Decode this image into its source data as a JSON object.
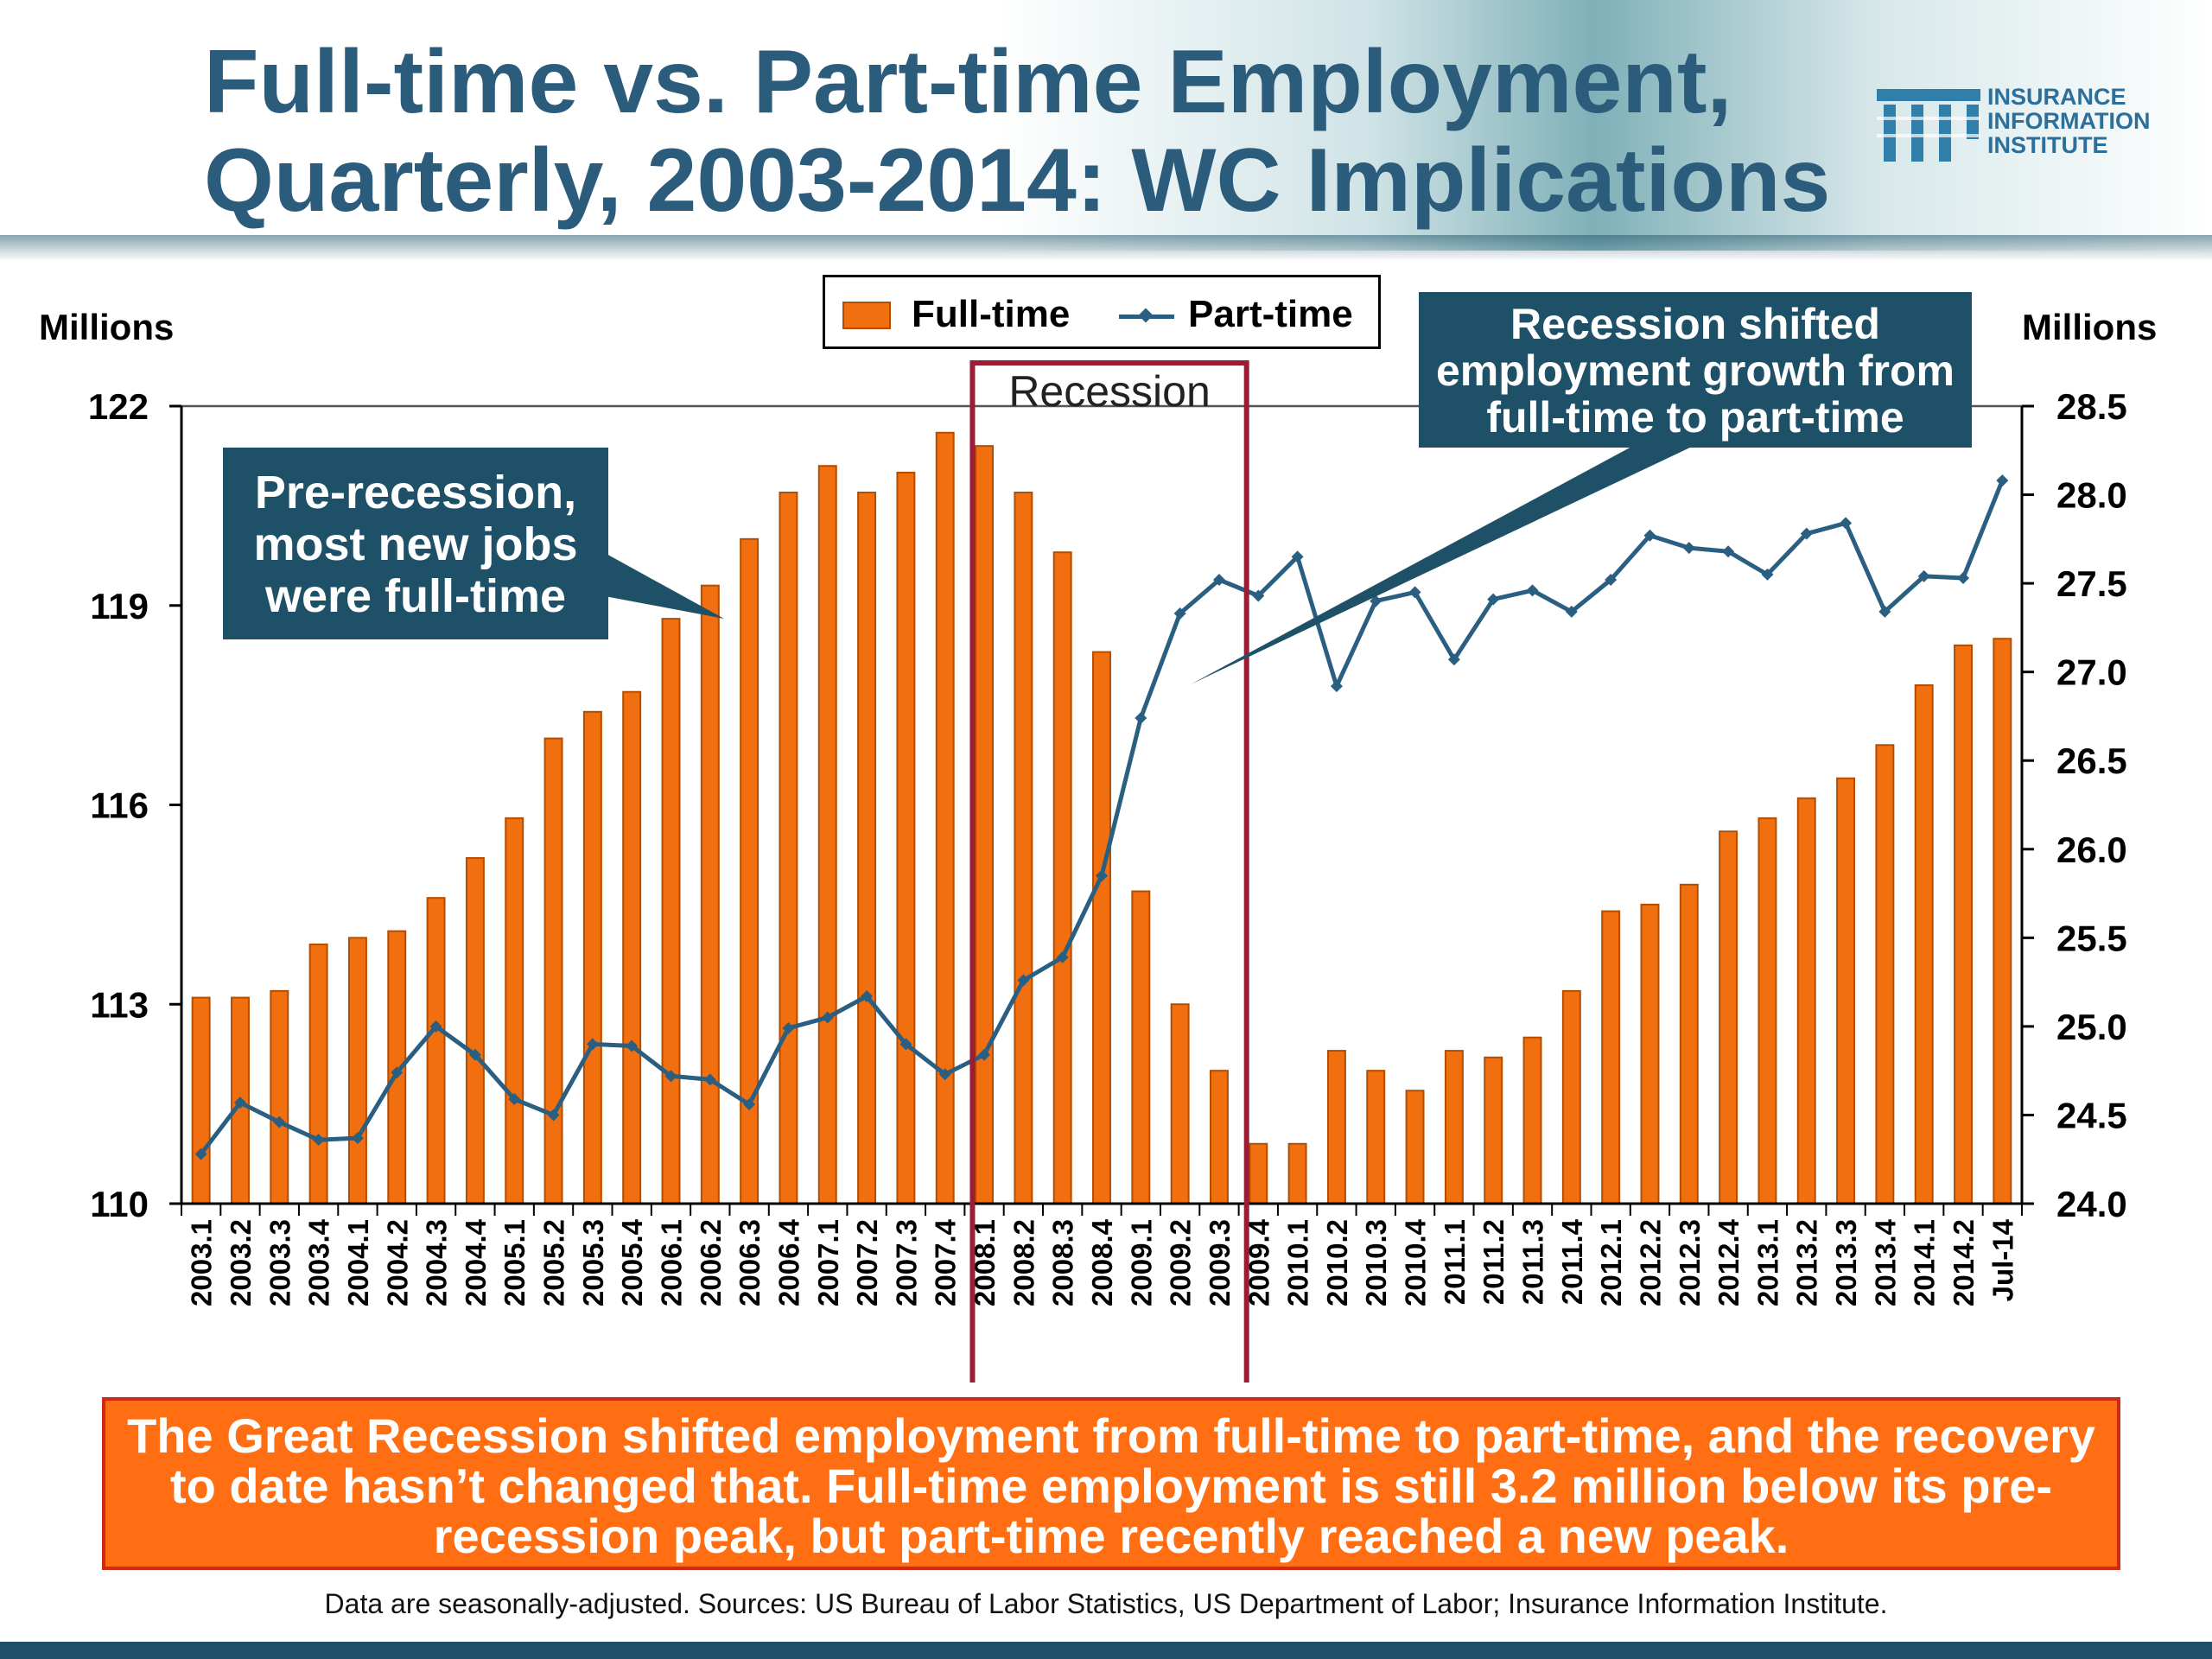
{
  "title": "Full-time vs. Part-time Employment,\nQuarterly, 2003-2014: WC Implications",
  "logo": {
    "text": "INSURANCE\nINFORMATION\nINSTITUTE",
    "icon": "iii-logo-icon",
    "color": "#2b6f9a"
  },
  "callouts": {
    "pre": "Pre-recession,\nmost new jobs\nwere full-time",
    "post": "Recession shifted\nemployment growth from\nfull-time to part-time",
    "recession": "Recession"
  },
  "summary": "The Great Recession shifted employment from full-time to part-time, and the recovery to date hasn’t changed that. Full-time employment is still 3.2 million below its pre-recession peak, but part-time recently reached a new peak.",
  "source": "Data are seasonally-adjusted. Sources: US Bureau of Labor Statistics, US Department of Labor; Insurance Information Institute.",
  "colors": {
    "fulltime": "#f26f10",
    "fulltime_edge": "#b44d00",
    "parttime": "#2a5f82",
    "recession_box": "#9b1c34",
    "callout_bg": "#1e5068",
    "summary_bg": "#ff6e12"
  },
  "chart_data": {
    "type": "bar",
    "categories": [
      "2003.1",
      "2003.2",
      "2003.3",
      "2003.4",
      "2004.1",
      "2004.2",
      "2004.3",
      "2004.4",
      "2005.1",
      "2005.2",
      "2005.3",
      "2005.4",
      "2006.1",
      "2006.2",
      "2006.3",
      "2006.4",
      "2007.1",
      "2007.2",
      "2007.3",
      "2007.4",
      "2008.1",
      "2008.2",
      "2008.3",
      "2008.4",
      "2009.1",
      "2009.2",
      "2009.3",
      "2009.4",
      "2010.1",
      "2010.2",
      "2010.3",
      "2010.4",
      "2011.1",
      "2011.2",
      "2011.3",
      "2011.4",
      "2012.1",
      "2012.2",
      "2012.3",
      "2012.4",
      "2013.1",
      "2013.2",
      "2013.3",
      "2013.4",
      "2014.1",
      "2014.2",
      "Jul-14"
    ],
    "legend": [
      "Full-time",
      "Part-time"
    ],
    "legend_position": "top-center",
    "y_left": {
      "label": "Millions",
      "range": [
        110,
        122
      ],
      "ticks": [
        110,
        113,
        116,
        119,
        122
      ]
    },
    "y_right": {
      "label": "Millions",
      "range": [
        24.0,
        28.5
      ],
      "ticks": [
        "24.0",
        "24.5",
        "25.0",
        "25.5",
        "26.0",
        "26.5",
        "27.0",
        "27.5",
        "28.0",
        "28.5"
      ]
    },
    "series": [
      {
        "name": "Full-time",
        "type": "bar",
        "axis": "left",
        "values": [
          113.1,
          113.1,
          113.2,
          113.9,
          114.0,
          114.1,
          114.6,
          115.2,
          115.8,
          117.0,
          117.4,
          117.7,
          118.8,
          119.3,
          120.0,
          120.7,
          121.1,
          120.7,
          121.0,
          121.6,
          121.4,
          120.7,
          119.8,
          118.3,
          114.7,
          113.0,
          112.0,
          110.9,
          110.9,
          112.3,
          112.0,
          111.7,
          112.3,
          112.2,
          112.5,
          113.2,
          114.4,
          114.5,
          114.8,
          115.6,
          115.8,
          116.1,
          116.4,
          116.9,
          117.8,
          118.4,
          118.5
        ]
      },
      {
        "name": "Part-time",
        "type": "line",
        "axis": "right",
        "values": [
          24.28,
          24.57,
          24.46,
          24.36,
          24.37,
          24.74,
          25.0,
          24.84,
          24.59,
          24.5,
          24.9,
          24.89,
          24.72,
          24.7,
          24.56,
          24.99,
          25.05,
          25.17,
          24.9,
          24.73,
          24.84,
          25.26,
          25.39,
          25.85,
          26.74,
          27.33,
          27.52,
          27.43,
          27.65,
          26.92,
          27.4,
          27.45,
          27.07,
          27.41,
          27.46,
          27.34,
          27.52,
          27.77,
          27.7,
          27.68,
          27.55,
          27.78,
          27.84,
          27.34,
          27.54,
          27.53,
          28.08
        ]
      }
    ],
    "annotations": [
      "Recession"
    ],
    "recession_span": [
      "2008.1",
      "2009.3"
    ]
  }
}
